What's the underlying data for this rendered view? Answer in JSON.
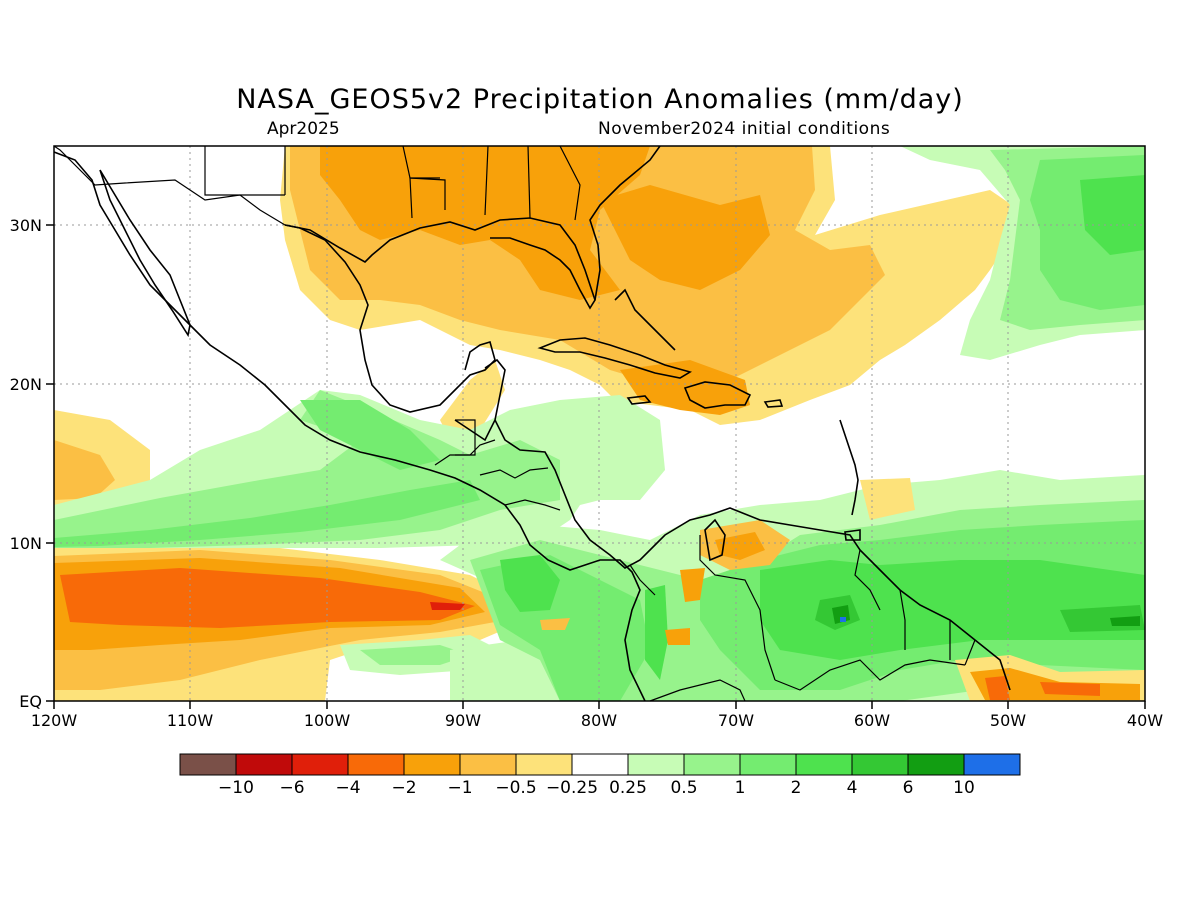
{
  "map": {
    "title": "NASA_GEOS5v2 Precipitation Anomalies (mm/day)",
    "valid_month": "Apr2025",
    "initial_conditions": "November2024 initial conditions",
    "lon_ticks": [
      "120W",
      "110W",
      "100W",
      "90W",
      "80W",
      "70W",
      "60W",
      "50W",
      "40W"
    ],
    "lat_ticks": [
      "EQ",
      "10N",
      "20N",
      "30N"
    ],
    "colors": {
      "neg10": "#7a5048",
      "neg6": "#c00a0a",
      "neg4": "#e01f0a",
      "neg2": "#f86a08",
      "neg1": "#f8a10a",
      "neg05": "#fbbf44",
      "neg025": "#fde27a",
      "neutral": "#ffffff",
      "pos025": "#c7fcb6",
      "pos05": "#97f38c",
      "pos1": "#74ec70",
      "pos2": "#4ee24e",
      "pos4": "#34c834",
      "pos6": "#129e12",
      "pos10": "#1e6fe8"
    },
    "colorbar": {
      "colors": [
        "#7a5048",
        "#c00a0a",
        "#e01f0a",
        "#f86a08",
        "#f8a10a",
        "#fbbf44",
        "#fde27a",
        "#ffffff",
        "#c7fcb6",
        "#97f38c",
        "#74ec70",
        "#4ee24e",
        "#34c834",
        "#129e12",
        "#1e6fe8"
      ],
      "labels": [
        "−10",
        "−6",
        "−4",
        "−2",
        "−1",
        "−0.5",
        "−0.25",
        "0.25",
        "0.5",
        "1",
        "2",
        "4",
        "6",
        "10"
      ]
    }
  }
}
